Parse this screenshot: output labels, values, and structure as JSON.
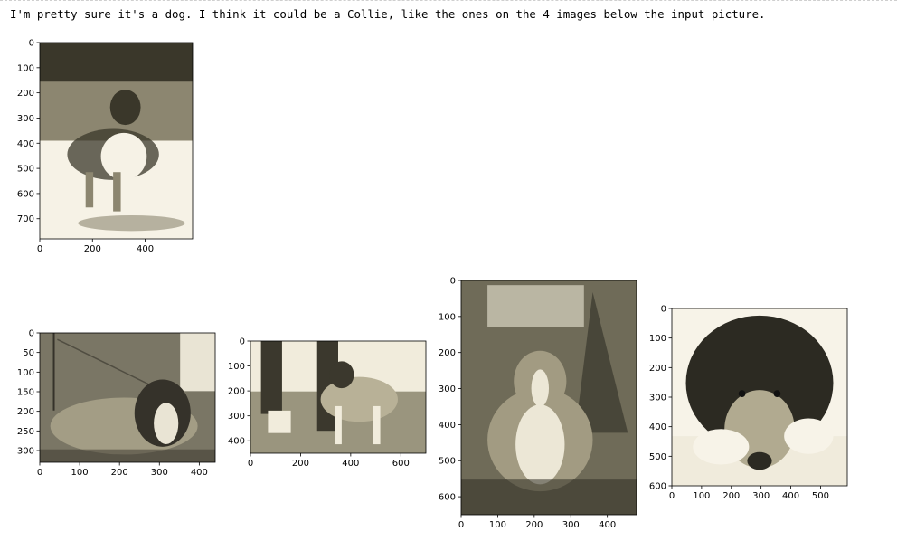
{
  "output": {
    "message": "I'm pretty sure it's a dog. I think it could be a Collie, like the ones on the 4 images below the input picture."
  },
  "figures": [
    {
      "name": "input-picture",
      "img": [
        580,
        780
      ],
      "x_ticks": [
        0,
        200,
        400
      ],
      "y_ticks": [
        0,
        100,
        200,
        300,
        400,
        500,
        600,
        700
      ],
      "icon": "collie-standing-lake-photo",
      "colors": {
        "bg": "#efe9d8",
        "dark": "#3a372a",
        "mid": "#8c8670",
        "light": "#f6f2e6"
      }
    },
    {
      "name": "similar-image-1",
      "img": [
        440,
        330
      ],
      "x_ticks": [
        0,
        100,
        200,
        300,
        400
      ],
      "y_ticks": [
        0,
        50,
        100,
        150,
        200,
        250,
        300
      ],
      "icon": "collie-lying-barn-photo",
      "colors": {
        "bg": "#7a7665",
        "dark": "#35322a",
        "mid": "#a39d85",
        "light": "#e9e4d4"
      }
    },
    {
      "name": "similar-image-2",
      "img": [
        700,
        450
      ],
      "x_ticks": [
        0,
        200,
        400,
        600
      ],
      "y_ticks": [
        0,
        100,
        200,
        300,
        400
      ],
      "icon": "collie-dog-show-photo",
      "colors": {
        "bg": "#9a957e",
        "dark": "#3b382d",
        "mid": "#b8b197",
        "light": "#f1ecdc"
      }
    },
    {
      "name": "similar-image-3",
      "img": [
        480,
        650
      ],
      "x_ticks": [
        0,
        100,
        200,
        300,
        400
      ],
      "y_ticks": [
        0,
        100,
        200,
        300,
        400,
        500,
        600
      ],
      "icon": "collie-sitting-garden-photo",
      "colors": {
        "bg": "#6f6b58",
        "dark": "#2f2d24",
        "mid": "#a29b82",
        "light": "#ece7d6"
      }
    },
    {
      "name": "similar-image-4",
      "img": [
        590,
        600
      ],
      "x_ticks": [
        0,
        100,
        200,
        300,
        400,
        500
      ],
      "y_ticks": [
        0,
        100,
        200,
        300,
        400,
        500,
        600
      ],
      "icon": "collie-head-closeup-photo",
      "colors": {
        "bg": "#f0ebdc",
        "dark": "#2c2a22",
        "mid": "#b1aa90",
        "light": "#f7f3e8"
      }
    }
  ]
}
